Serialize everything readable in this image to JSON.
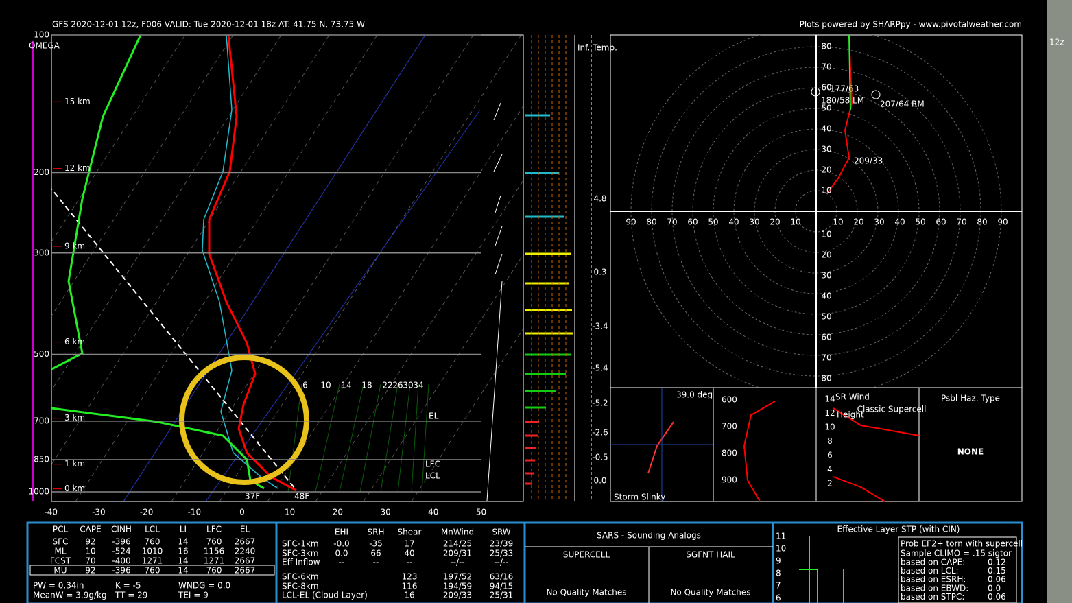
{
  "header": {
    "title": "GFS 2020-12-01 12z, F006  VALID: Tue 2020-12-01 18z  AT: 41.75 N, 73.75 W",
    "credit": "Plots powered by SHARPpy - www.pivotalweather.com",
    "side": "12z"
  },
  "skewt": {
    "xticks": [
      -40,
      -30,
      -20,
      -10,
      0,
      10,
      20,
      30,
      40,
      50
    ],
    "pressures": [
      100,
      200,
      300,
      500,
      700,
      850,
      1000
    ],
    "heights": [
      {
        "p": 140,
        "label": "15 km"
      },
      {
        "p": 196,
        "label": "12 km"
      },
      {
        "p": 290,
        "label": "9 km"
      },
      {
        "p": 470,
        "label": "6 km"
      },
      {
        "p": 690,
        "label": "3 km"
      },
      {
        "p": 870,
        "label": "1 km"
      },
      {
        "p": 985,
        "label": "0 km"
      }
    ],
    "omega": "OMEGA",
    "mixing": [
      "6",
      "10",
      "14",
      "18",
      "22",
      "26",
      "30",
      "34"
    ],
    "el": "EL",
    "lfc": "LFC",
    "lcl": "LCL",
    "sfc_td": "37F",
    "sfc_t": "48F"
  },
  "inferred": {
    "title": "Inf. Temp.",
    "values": [
      "4.8",
      "0.3",
      "-3.4",
      "-5.4",
      "-5.2",
      "-2.6",
      "-0.5",
      "0.0"
    ]
  },
  "hodograph": {
    "rings": [
      10,
      20,
      30,
      40,
      50,
      60,
      70,
      80,
      90
    ],
    "motions": [
      "177/63",
      "180/58 LM",
      "207/64 RM",
      "209/33"
    ]
  },
  "slinky": {
    "angle": "39.0 deg",
    "label": "Storm Slinky"
  },
  "theta": {
    "pressures": [
      600,
      700,
      800,
      900
    ]
  },
  "srwind": {
    "title": "SR Wind",
    "sub": "Height",
    "supercell": "Classic Supercell",
    "ticks": [
      14,
      12,
      10,
      8,
      6,
      4,
      2
    ]
  },
  "hazard": {
    "title": "Psbl Haz. Type",
    "value": "NONE"
  },
  "thermo": {
    "headers": [
      "PCL",
      "CAPE",
      "CINH",
      "LCL",
      "LI",
      "LFC",
      "EL"
    ],
    "rows": [
      [
        "SFC",
        "92",
        "-396",
        "760",
        "14",
        "760",
        "2667"
      ],
      [
        "ML",
        "10",
        "-524",
        "1010",
        "16",
        "1156",
        "2240"
      ],
      [
        "FCST",
        "70",
        "-400",
        "1271",
        "14",
        "1271",
        "2667"
      ],
      [
        "MU",
        "92",
        "-396",
        "760",
        "14",
        "760",
        "2667"
      ]
    ],
    "indices": [
      "PW = 0.34in",
      "K = -5",
      "WNDG = 0.0",
      "MeanW = 3.9g/kg",
      "TT = 29",
      "TEI = 9"
    ]
  },
  "kinematic": {
    "headers": [
      "EHI",
      "SRH",
      "Shear",
      "MnWind",
      "SRW"
    ],
    "rows": [
      [
        "SFC-1km",
        "-0.0",
        "-35",
        "17",
        "214/25",
        "23/39"
      ],
      [
        "SFC-3km",
        "0.0",
        "66",
        "40",
        "209/31",
        "25/33"
      ],
      [
        "Eff Inflow",
        "--",
        "--",
        "--",
        "--/--",
        "--/--"
      ],
      [
        "SFC-6km",
        null,
        null,
        "123",
        "197/52",
        "63/16"
      ],
      [
        "SFC-8km",
        null,
        null,
        "116",
        "194/59",
        "94/15"
      ],
      [
        "LCL-EL (Cloud Layer)",
        null,
        null,
        "16",
        "209/33",
        "25/31"
      ]
    ]
  },
  "sars": {
    "title": "SARS - Sounding Analogs",
    "supercell": "SUPERCELL",
    "hail": "SGFNT HAIL",
    "supercell_msg": "No Quality Matches",
    "hail_msg": "No Quality Matches"
  },
  "stp": {
    "title": "Effective Layer STP (with CIN)",
    "yticks": [
      11,
      10,
      9,
      8,
      7,
      6
    ],
    "box_title": "Prob EF2+ torn with supercell",
    "box_sub": "Sample CLIMO = .15 sigtor",
    "rows": [
      [
        "based on CAPE:",
        "0.12"
      ],
      [
        "based on LCL:",
        "0.15"
      ],
      [
        "based on ESRH:",
        "0.06"
      ],
      [
        "based on EBWD:",
        "0.0"
      ],
      [
        "based on STPC:",
        "0.06"
      ]
    ]
  }
}
